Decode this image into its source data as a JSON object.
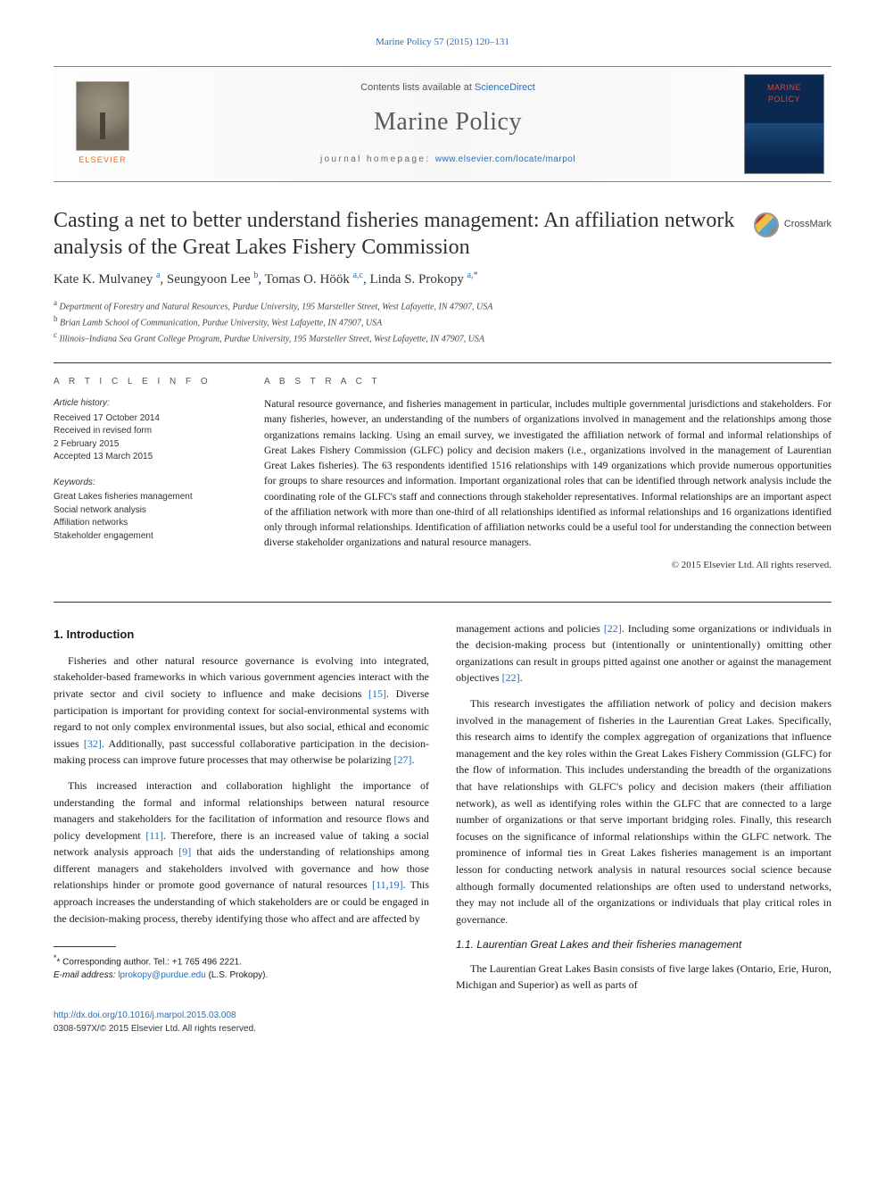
{
  "top_citation": "Marine Policy 57 (2015) 120–131",
  "header": {
    "contents_prefix": "Contents lists available at ",
    "contents_link_text": "ScienceDirect",
    "journal_name": "Marine Policy",
    "homepage_prefix": "journal homepage: ",
    "homepage_link_text": "www.elsevier.com/locate/marpol",
    "publisher_label": "ELSEVIER",
    "cover_title_line1": "MARINE",
    "cover_title_line2": "POLICY"
  },
  "crossmark_label": "CrossMark",
  "article": {
    "title": "Casting a net to better understand fisheries management: An affiliation network analysis of the Great Lakes Fishery Commission",
    "authors_html": "Kate K. Mulvaney <sup>a</sup>, Seungyoon Lee <sup>b</sup>, Tomas O. Höök <sup>a,c</sup>, Linda S. Prokopy <sup>a,</sup><span class='sup-star'><sup>*</sup></span>",
    "affiliations": [
      {
        "sup": "a",
        "text": "Department of Forestry and Natural Resources, Purdue University, 195 Marsteller Street, West Lafayette, IN 47907, USA"
      },
      {
        "sup": "b",
        "text": "Brian Lamb School of Communication, Purdue University, West Lafayette, IN 47907, USA"
      },
      {
        "sup": "c",
        "text": "Illinois–Indiana Sea Grant College Program, Purdue University, 195 Marsteller Street, West Lafayette, IN 47907, USA"
      }
    ]
  },
  "article_info_heading": "A R T I C L E   I N F O",
  "abstract_heading": "A B S T R A C T",
  "history": {
    "label": "Article history:",
    "received": "Received 17 October 2014",
    "revised_label": "Received in revised form",
    "revised_date": "2 February 2015",
    "accepted": "Accepted 13 March 2015"
  },
  "keywords": {
    "label": "Keywords:",
    "items": [
      "Great Lakes fisheries management",
      "Social network analysis",
      "Affiliation networks",
      "Stakeholder engagement"
    ]
  },
  "abstract_text": "Natural resource governance, and fisheries management in particular, includes multiple governmental jurisdictions and stakeholders. For many fisheries, however, an understanding of the numbers of organizations involved in management and the relationships among those organizations remains lacking. Using an email survey, we investigated the affiliation network of formal and informal relationships of Great Lakes Fishery Commission (GLFC) policy and decision makers (i.e., organizations involved in the management of Laurentian Great Lakes fisheries). The 63 respondents identified 1516 relationships with 149 organizations which provide numerous opportunities for groups to share resources and information. Important organizational roles that can be identified through network analysis include the coordinating role of the GLFC's staff and connections through stakeholder representatives. Informal relationships are an important aspect of the affiliation network with more than one-third of all relationships identified as informal relationships and 16 organizations identified only through informal relationships. Identification of affiliation networks could be a useful tool for understanding the connection between diverse stakeholder organizations and natural resource managers.",
  "abstract_copyright": "© 2015 Elsevier Ltd. All rights reserved.",
  "body": {
    "sec1_heading": "1.  Introduction",
    "p1": "Fisheries and other natural resource governance is evolving into integrated, stakeholder-based frameworks in which various government agencies interact with the private sector and civil society to influence and make decisions [15]. Diverse participation is important for providing context for social-environmental systems with regard to not only complex environmental issues, but also social, ethical and economic issues [32]. Additionally, past successful collaborative participation in the decision-making process can improve future processes that may otherwise be polarizing [27].",
    "p2": "This increased interaction and collaboration highlight the importance of understanding the formal and informal relationships between natural resource managers and stakeholders for the facilitation of information and resource flows and policy development [11]. Therefore, there is an increased value of taking a social network analysis approach [9] that aids the understanding of relationships among different managers and stakeholders involved with governance and how those relationships hinder or promote good governance of natural resources [11,19]. This approach increases the understanding of which stakeholders are or could be engaged in the decision-making process, thereby identifying those who affect and are affected by",
    "p3": "management actions and policies [22]. Including some organizations or individuals in the decision-making process but (intentionally or unintentionally) omitting other organizations can result in groups pitted against one another or against the management objectives [22].",
    "p4": "This research investigates the affiliation network of policy and decision makers involved in the management of fisheries in the Laurentian Great Lakes. Specifically, this research aims to identify the complex aggregation of organizations that influence management and the key roles within the Great Lakes Fishery Commission (GLFC) for the flow of information. This includes understanding the breadth of the organizations that have relationships with GLFC's policy and decision makers (their affiliation network), as well as identifying roles within the GLFC that are connected to a large number of organizations or that serve important bridging roles. Finally, this research focuses on the significance of informal relationships within the GLFC network. The prominence of informal ties in Great Lakes fisheries management is an important lesson for conducting network analysis in natural resources social science because although formally documented relationships are often used to understand networks, they may not include all of the organizations or individuals that play critical roles in governance.",
    "sec11_heading": "1.1.  Laurentian Great Lakes and their fisheries management",
    "p5": "The Laurentian Great Lakes Basin consists of five large lakes (Ontario, Erie, Huron, Michigan and Superior) as well as parts of"
  },
  "footnotes": {
    "corresponding_prefix": "* Corresponding author. Tel.: ",
    "corresponding_tel": "+1 765 496 2221.",
    "email_label": "E-mail address: ",
    "email": "lprokopy@purdue.edu",
    "email_suffix": " (L.S. Prokopy)."
  },
  "footer": {
    "doi": "http://dx.doi.org/10.1016/j.marpol.2015.03.008",
    "issn_line": "0308-597X/© 2015 Elsevier Ltd. All rights reserved."
  },
  "refs": {
    "r15": "[15]",
    "r32": "[32]",
    "r27": "[27]",
    "r11a": "[11]",
    "r9": "[9]",
    "r1119": "[11,19]",
    "r22a": "[22]",
    "r22b": "[22]"
  },
  "colors": {
    "link": "#2a6db8",
    "elsevier_orange": "#e66a1e",
    "cover_bg": "#0a2850",
    "cover_title": "#d84a3a"
  }
}
